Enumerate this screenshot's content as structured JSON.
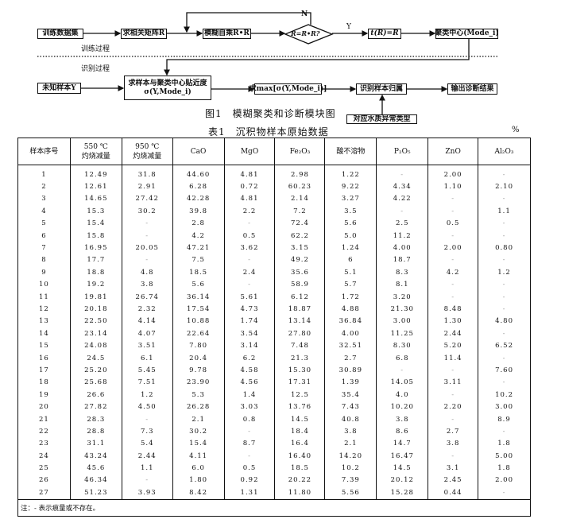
{
  "diagram": {
    "training_set": "训练数据集",
    "corr_matrix": "求相关矩阵R",
    "fuzzy_self_mult": "模糊自乘R•R",
    "condition": "R=R•R?",
    "no_label": "N",
    "yes_label": "Y",
    "transitive": "t(R)=R",
    "cluster_center": "聚类中心(Mode_i)",
    "training_process": "训练过程",
    "recognition_process": "识别过程",
    "unknown_sample": "未知样本Y",
    "closeness_line1": "求样本与聚类中心贴近度",
    "closeness_line2": "σ(Y,Mode_i)",
    "max_closeness": "求max[σ(Y,Mode_i)]",
    "identify_sample": "识别样本归属",
    "output_result": "输出诊断结果",
    "anomaly_type": "对应水质异常类型"
  },
  "figure_caption": "图1　模糊聚类和诊断模块图",
  "table": {
    "caption": "表1　沉积物样本原始数据",
    "unit": "%",
    "headers": [
      "样本序号",
      "550 ℃\n灼烧减量",
      "950 ℃\n灼烧减量",
      "CaO",
      "MgO",
      "Fe₂O₃",
      "酸不溶物",
      "P₂O₅",
      "ZnO",
      "Al₂O₃"
    ],
    "rows": [
      [
        "1",
        "12.49",
        "31.8",
        "44.60",
        "4.81",
        "2.98",
        "1.22",
        "-",
        "2.00",
        "-"
      ],
      [
        "2",
        "12.61",
        "2.91",
        "6.28",
        "0.72",
        "60.23",
        "9.22",
        "4.34",
        "1.10",
        "2.10"
      ],
      [
        "3",
        "14.65",
        "27.42",
        "42.28",
        "4.81",
        "2.14",
        "3.27",
        "4.22",
        "-",
        "-"
      ],
      [
        "4",
        "15.3",
        "30.2",
        "39.8",
        "2.2",
        "7.2",
        "3.5",
        "-",
        "-",
        "1.1"
      ],
      [
        "5",
        "15.4",
        "-",
        "2.8",
        "-",
        "72.4",
        "5.6",
        "2.5",
        "0.5",
        "-"
      ],
      [
        "6",
        "15.8",
        "-",
        "4.2",
        "0.5",
        "62.2",
        "5.0",
        "11.2",
        "-",
        "-"
      ],
      [
        "7",
        "16.95",
        "20.05",
        "47.21",
        "3.62",
        "3.15",
        "1.24",
        "4.00",
        "2.00",
        "0.80"
      ],
      [
        "8",
        "17.7",
        "-",
        "7.5",
        "-",
        "49.2",
        "6",
        "18.7",
        "-",
        "-"
      ],
      [
        "9",
        "18.8",
        "4.8",
        "18.5",
        "2.4",
        "35.6",
        "5.1",
        "8.3",
        "4.2",
        "1.2"
      ],
      [
        "10",
        "19.2",
        "3.8",
        "5.6",
        "-",
        "58.9",
        "5.7",
        "8.1",
        "-",
        "-"
      ],
      [
        "11",
        "19.81",
        "26.74",
        "36.14",
        "5.61",
        "6.12",
        "1.72",
        "3.20",
        "-",
        "-"
      ],
      [
        "12",
        "20.18",
        "2.32",
        "17.54",
        "4.73",
        "18.87",
        "4.88",
        "21.30",
        "8.48",
        "-"
      ],
      [
        "13",
        "22.50",
        "4.14",
        "10.88",
        "1.74",
        "13.14",
        "36.84",
        "3.00",
        "1.30",
        "4.80"
      ],
      [
        "14",
        "23.14",
        "4.07",
        "22.64",
        "3.54",
        "27.80",
        "4.00",
        "11.25",
        "2.44",
        "-"
      ],
      [
        "15",
        "24.08",
        "3.51",
        "7.80",
        "3.14",
        "7.48",
        "32.51",
        "8.30",
        "5.20",
        "6.52"
      ],
      [
        "16",
        "24.5",
        "6.1",
        "20.4",
        "6.2",
        "21.3",
        "2.7",
        "6.8",
        "11.4",
        "-"
      ],
      [
        "17",
        "25.20",
        "5.45",
        "9.78",
        "4.58",
        "15.30",
        "30.89",
        "-",
        "-",
        "7.60"
      ],
      [
        "18",
        "25.68",
        "7.51",
        "23.90",
        "4.56",
        "17.31",
        "1.39",
        "14.05",
        "3.11",
        "-"
      ],
      [
        "19",
        "26.6",
        "1.2",
        "5.3",
        "1.4",
        "12.5",
        "35.4",
        "4.0",
        "-",
        "10.2"
      ],
      [
        "20",
        "27.82",
        "4.50",
        "26.28",
        "3.03",
        "13.76",
        "7.43",
        "10.20",
        "2.20",
        "3.00"
      ],
      [
        "21",
        "28.3",
        "-",
        "2.1",
        "0.8",
        "14.5",
        "40.8",
        "3.8",
        "-",
        "8.9"
      ],
      [
        "22",
        "28.8",
        "7.3",
        "30.2",
        "-",
        "18.4",
        "3.8",
        "8.6",
        "2.7",
        "-"
      ],
      [
        "23",
        "31.1",
        "5.4",
        "15.4",
        "8.7",
        "16.4",
        "2.1",
        "14.7",
        "3.8",
        "1.8"
      ],
      [
        "24",
        "43.24",
        "2.44",
        "4.11",
        "-",
        "16.40",
        "14.20",
        "16.47",
        "-",
        "5.00"
      ],
      [
        "25",
        "45.6",
        "1.1",
        "6.0",
        "0.5",
        "18.5",
        "10.2",
        "14.5",
        "3.1",
        "1.8"
      ],
      [
        "26",
        "46.34",
        "-",
        "1.80",
        "0.92",
        "20.22",
        "7.39",
        "20.12",
        "2.45",
        "2.00"
      ],
      [
        "27",
        "51.23",
        "3.93",
        "8.42",
        "1.31",
        "11.80",
        "5.56",
        "15.28",
        "0.44",
        "-"
      ]
    ],
    "note": "注：- 表示痕量或不存在。"
  }
}
